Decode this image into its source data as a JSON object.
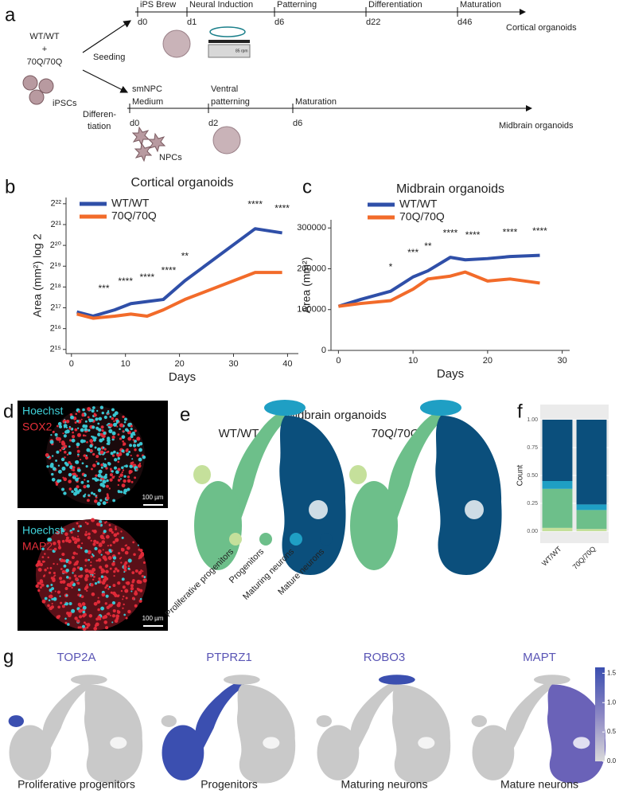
{
  "panel_labels": [
    "a",
    "b",
    "c",
    "d",
    "e",
    "f",
    "g"
  ],
  "schematic": {
    "genotypes": [
      "WT/WT",
      "+",
      "70Q/70Q"
    ],
    "cells": "iPSCs",
    "seeding": "Seeding",
    "differentiation": [
      "Differen-",
      "tiation"
    ],
    "cortical": {
      "stages": [
        "iPS Brew",
        "Neural Induction",
        "Patterning",
        "Differentiation",
        "Maturation"
      ],
      "days": [
        "d0",
        "d1",
        "d6",
        "d22",
        "d46"
      ],
      "name": "Cortical organoids",
      "device": "85 rpm"
    },
    "midbrain": {
      "stages": [
        [
          "smNPC",
          "Medium"
        ],
        [
          "Ventral",
          "patterning"
        ],
        [
          "Maturation"
        ]
      ],
      "days": [
        "d0",
        "d2",
        "d6"
      ],
      "name": "Midbrain organoids",
      "cells": "NPCs"
    }
  },
  "chart_data": [
    {
      "type": "line",
      "title": "Cortical organoids",
      "x_label": "Days",
      "y_label": "Area (mm²) log 2",
      "x": [
        1,
        4,
        8,
        11,
        14,
        17,
        21,
        34,
        39
      ],
      "series": [
        {
          "name": "WT/WT",
          "color": "#2f4fa8",
          "values": [
            16.8,
            16.6,
            16.9,
            17.2,
            17.3,
            17.4,
            18.3,
            20.8,
            20.6
          ]
        },
        {
          "name": "70Q/70Q",
          "color": "#f26b2a",
          "values": [
            16.7,
            16.5,
            16.6,
            16.7,
            16.6,
            16.9,
            17.4,
            18.7,
            18.7
          ]
        }
      ],
      "xlim": [
        -1,
        42
      ],
      "xticks": [
        0,
        10,
        20,
        30,
        40
      ],
      "ylim": [
        14.8,
        22.3
      ],
      "yticks": [
        {
          "value": 15,
          "label": "2¹⁵"
        },
        {
          "value": 16,
          "label": "2¹⁶"
        },
        {
          "value": 17,
          "label": "2¹⁷"
        },
        {
          "value": 18,
          "label": "2¹⁸"
        },
        {
          "value": 19,
          "label": "2¹⁹"
        },
        {
          "value": 20,
          "label": "2²⁰"
        },
        {
          "value": 21,
          "label": "2²¹"
        },
        {
          "value": 22,
          "label": "2²²"
        }
      ],
      "legend": "upper left",
      "annotations": [
        {
          "x": 6,
          "label": "***"
        },
        {
          "x": 10,
          "label": "****"
        },
        {
          "x": 14,
          "label": "****"
        },
        {
          "x": 18,
          "label": "****"
        },
        {
          "x": 21,
          "label": "**"
        },
        {
          "x": 34,
          "label": "****"
        },
        {
          "x": 39,
          "label": "****"
        }
      ]
    },
    {
      "type": "line",
      "title": "Midbrain organoids",
      "x_label": "Days",
      "y_label": "Area (mm²)",
      "x": [
        0,
        3,
        7,
        10,
        12,
        15,
        17,
        20,
        23,
        27
      ],
      "series": [
        {
          "name": "WT/WT",
          "color": "#2f4fa8",
          "values": [
            108000,
            125000,
            145000,
            180000,
            195000,
            228000,
            222000,
            225000,
            230000,
            233000
          ]
        },
        {
          "name": "70Q/70Q",
          "color": "#f26b2a",
          "values": [
            108000,
            115000,
            122000,
            150000,
            175000,
            182000,
            192000,
            170000,
            175000,
            165000
          ]
        }
      ],
      "xlim": [
        -1,
        31
      ],
      "xticks": [
        0,
        10,
        20,
        30
      ],
      "ylim": [
        0,
        320000
      ],
      "yticks": [
        0,
        100000,
        200000,
        300000
      ],
      "legend": "upper left",
      "annotations": [
        {
          "x": 7,
          "label": "*"
        },
        {
          "x": 10,
          "label": "***"
        },
        {
          "x": 12,
          "label": "**"
        },
        {
          "x": 15,
          "label": "****"
        },
        {
          "x": 18,
          "label": "****"
        },
        {
          "x": 23,
          "label": "****"
        },
        {
          "x": 27,
          "label": "****"
        }
      ]
    },
    {
      "type": "bar",
      "stacked": true,
      "y_label": "Count",
      "categories": [
        "WT/WT",
        "70Q/70Q"
      ],
      "series": [
        {
          "name": "Proliferative progenitors",
          "color": "#c5e09b",
          "values": [
            0.03,
            0.02
          ]
        },
        {
          "name": "Progenitors",
          "color": "#6dbf8a",
          "values": [
            0.35,
            0.17
          ]
        },
        {
          "name": "Maturing neurons",
          "color": "#1f9fc4",
          "values": [
            0.07,
            0.05
          ]
        },
        {
          "name": "Mature neurons",
          "color": "#0b4f7c",
          "values": [
            0.55,
            0.76
          ]
        }
      ],
      "ylim": [
        -0.05,
        1.05
      ],
      "yticks": [
        {
          "value": 0,
          "label": "0.00"
        },
        {
          "value": 0.25,
          "label": "0.25"
        },
        {
          "value": 0.5,
          "label": "0.50"
        },
        {
          "value": 0.75,
          "label": "0.75"
        },
        {
          "value": 1,
          "label": "1.00"
        }
      ],
      "legend": "below panel e"
    }
  ],
  "microscopy": [
    {
      "stain": "Hoechst",
      "marker": "SOX2",
      "scale": "100 µm"
    },
    {
      "stain": "Hoechst",
      "marker": "MAP2",
      "scale": "100 µm"
    }
  ],
  "umap": {
    "title": "Midbrain organoids",
    "groups": [
      "WT/WT",
      "70Q/70Q"
    ]
  },
  "features": {
    "genes": [
      "TOP2A",
      "PTPRZ1",
      "ROBO3",
      "MAPT"
    ],
    "cell_types": [
      "Proliferative progenitors",
      "Progenitors",
      "Maturing neurons",
      "Mature neurons"
    ],
    "colorbar": {
      "lim": [
        0,
        1.6
      ],
      "ticks": [
        1.5,
        {
          "value": 1,
          "label": "1.0"
        },
        0.5,
        {
          "value": 0,
          "label": "0.0"
        }
      ]
    }
  }
}
